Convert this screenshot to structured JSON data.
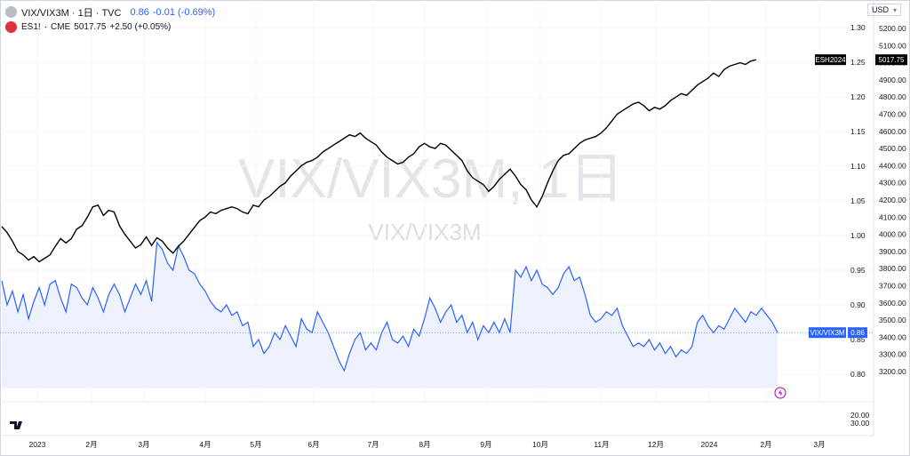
{
  "legend": {
    "main": {
      "title": "VIX/VIX3M · 1日 · TVC",
      "value": "0.86",
      "change": "-0.01 (-0.69%)"
    },
    "compare": {
      "symbol": "ES1!",
      "exchange": "CME",
      "value": "5017.75",
      "change": "+2.50 (+0.05%)"
    }
  },
  "currency": "USD",
  "watermark": {
    "line1": "VIX/VIX3M, 1日",
    "line2": "VIX/VIX3M"
  },
  "colors": {
    "ratio_line": "#2962ff",
    "es_line": "#000000",
    "ratio_fill": "#eef2ff"
  },
  "chart_data": {
    "type": "line",
    "timeframe": "1日",
    "x_ticks": [
      "2023",
      "2月",
      "3月",
      "4月",
      "5月",
      "6月",
      "7月",
      "8月",
      "9月",
      "10月",
      "11月",
      "12月",
      "2024",
      "2月",
      "3月"
    ],
    "right_axis_ticks": [
      "1.30",
      "1.25",
      "1.20",
      "1.15",
      "1.10",
      "1.05",
      "1.00",
      "0.95",
      "0.90",
      "0.85",
      "0.80"
    ],
    "left_scale_ticks": [
      "5200.00",
      "5100.00",
      "5000.00",
      "4900.00",
      "4800.00",
      "4700.00",
      "4600.00",
      "4500.00",
      "4400.00",
      "4300.00",
      "4200.00",
      "4100.00",
      "4000.00",
      "3900.00",
      "3800.00",
      "3700.00",
      "3600.00",
      "3500.00",
      "3400.00",
      "3300.00",
      "3200.00"
    ],
    "volume_ticks": [
      "20.00",
      "30.00"
    ],
    "ratio_range": [
      0.77,
      1.31
    ],
    "es_range": [
      3200,
      5250
    ],
    "series": [
      {
        "name": "VIX/VIX3M",
        "last_value_label": "0.86",
        "points": [
          [
            0,
            0.935
          ],
          [
            3,
            0.9
          ],
          [
            6,
            0.92
          ],
          [
            9,
            0.89
          ],
          [
            12,
            0.915
          ],
          [
            15,
            0.88
          ],
          [
            18,
            0.905
          ],
          [
            21,
            0.925
          ],
          [
            24,
            0.9
          ],
          [
            27,
            0.93
          ],
          [
            30,
            0.935
          ],
          [
            33,
            0.91
          ],
          [
            36,
            0.89
          ],
          [
            39,
            0.93
          ],
          [
            42,
            0.925
          ],
          [
            45,
            0.91
          ],
          [
            48,
            0.9
          ],
          [
            51,
            0.925
          ],
          [
            54,
            0.91
          ],
          [
            57,
            0.89
          ],
          [
            60,
            0.915
          ],
          [
            63,
            0.93
          ],
          [
            66,
            0.915
          ],
          [
            69,
            0.89
          ],
          [
            72,
            0.91
          ],
          [
            75,
            0.93
          ],
          [
            78,
            0.915
          ],
          [
            81,
            0.935
          ],
          [
            84,
            0.905
          ],
          [
            87,
            0.99
          ],
          [
            90,
            0.98
          ],
          [
            93,
            0.96
          ],
          [
            96,
            0.95
          ],
          [
            99,
            0.985
          ],
          [
            102,
            0.97
          ],
          [
            105,
            0.95
          ],
          [
            108,
            0.945
          ],
          [
            111,
            0.93
          ],
          [
            114,
            0.92
          ],
          [
            117,
            0.905
          ],
          [
            120,
            0.895
          ],
          [
            123,
            0.89
          ],
          [
            126,
            0.9
          ],
          [
            129,
            0.885
          ],
          [
            132,
            0.89
          ],
          [
            135,
            0.87
          ],
          [
            138,
            0.875
          ],
          [
            141,
            0.84
          ],
          [
            144,
            0.85
          ],
          [
            147,
            0.83
          ],
          [
            150,
            0.84
          ],
          [
            153,
            0.86
          ],
          [
            156,
            0.85
          ],
          [
            159,
            0.87
          ],
          [
            162,
            0.855
          ],
          [
            165,
            0.84
          ],
          [
            168,
            0.88
          ],
          [
            171,
            0.865
          ],
          [
            174,
            0.86
          ],
          [
            177,
            0.89
          ],
          [
            180,
            0.875
          ],
          [
            183,
            0.86
          ],
          [
            186,
            0.84
          ],
          [
            189,
            0.82
          ],
          [
            192,
            0.805
          ],
          [
            195,
            0.83
          ],
          [
            198,
            0.85
          ],
          [
            201,
            0.86
          ],
          [
            204,
            0.835
          ],
          [
            207,
            0.845
          ],
          [
            210,
            0.835
          ],
          [
            213,
            0.86
          ],
          [
            216,
            0.875
          ],
          [
            219,
            0.85
          ],
          [
            222,
            0.845
          ],
          [
            225,
            0.855
          ],
          [
            228,
            0.84
          ],
          [
            231,
            0.865
          ],
          [
            234,
            0.855
          ],
          [
            237,
            0.88
          ],
          [
            240,
            0.91
          ],
          [
            243,
            0.895
          ],
          [
            246,
            0.875
          ],
          [
            249,
            0.89
          ],
          [
            252,
            0.9
          ],
          [
            255,
            0.875
          ],
          [
            258,
            0.885
          ],
          [
            261,
            0.86
          ],
          [
            264,
            0.875
          ],
          [
            267,
            0.85
          ],
          [
            270,
            0.87
          ],
          [
            273,
            0.86
          ],
          [
            276,
            0.875
          ],
          [
            279,
            0.86
          ],
          [
            282,
            0.88
          ],
          [
            285,
            0.86
          ],
          [
            288,
            0.95
          ],
          [
            291,
            0.94
          ],
          [
            294,
            0.955
          ],
          [
            297,
            0.935
          ],
          [
            300,
            0.95
          ],
          [
            303,
            0.93
          ],
          [
            306,
            0.925
          ],
          [
            309,
            0.915
          ],
          [
            312,
            0.925
          ],
          [
            315,
            0.945
          ],
          [
            318,
            0.955
          ],
          [
            321,
            0.935
          ],
          [
            324,
            0.94
          ],
          [
            327,
            0.915
          ],
          [
            330,
            0.885
          ],
          [
            333,
            0.875
          ],
          [
            336,
            0.88
          ],
          [
            339,
            0.89
          ],
          [
            342,
            0.885
          ],
          [
            345,
            0.895
          ],
          [
            348,
            0.87
          ],
          [
            351,
            0.855
          ],
          [
            354,
            0.84
          ],
          [
            357,
            0.845
          ],
          [
            360,
            0.84
          ],
          [
            363,
            0.85
          ],
          [
            366,
            0.835
          ],
          [
            369,
            0.845
          ],
          [
            372,
            0.83
          ],
          [
            375,
            0.84
          ],
          [
            378,
            0.825
          ],
          [
            381,
            0.835
          ],
          [
            384,
            0.83
          ],
          [
            387,
            0.84
          ],
          [
            390,
            0.875
          ],
          [
            393,
            0.885
          ],
          [
            396,
            0.87
          ],
          [
            399,
            0.86
          ],
          [
            402,
            0.87
          ],
          [
            405,
            0.865
          ],
          [
            408,
            0.88
          ],
          [
            411,
            0.895
          ],
          [
            414,
            0.885
          ],
          [
            417,
            0.875
          ],
          [
            420,
            0.89
          ],
          [
            423,
            0.885
          ],
          [
            426,
            0.895
          ],
          [
            429,
            0.885
          ],
          [
            432,
            0.875
          ],
          [
            435,
            0.86
          ]
        ]
      },
      {
        "name": "ES1!",
        "last_value_label": "5017.75",
        "price_label": "ESH2024",
        "points": [
          [
            0,
            4045
          ],
          [
            3,
            4010
          ],
          [
            6,
            3960
          ],
          [
            9,
            3900
          ],
          [
            12,
            3880
          ],
          [
            15,
            3850
          ],
          [
            18,
            3870
          ],
          [
            21,
            3840
          ],
          [
            24,
            3860
          ],
          [
            27,
            3880
          ],
          [
            30,
            3930
          ],
          [
            33,
            3975
          ],
          [
            36,
            3950
          ],
          [
            39,
            3975
          ],
          [
            42,
            4030
          ],
          [
            45,
            4050
          ],
          [
            48,
            4100
          ],
          [
            51,
            4160
          ],
          [
            54,
            4170
          ],
          [
            57,
            4110
          ],
          [
            60,
            4140
          ],
          [
            63,
            4130
          ],
          [
            66,
            4050
          ],
          [
            69,
            4000
          ],
          [
            72,
            3960
          ],
          [
            75,
            3920
          ],
          [
            78,
            3940
          ],
          [
            81,
            3985
          ],
          [
            84,
            3935
          ],
          [
            87,
            3980
          ],
          [
            90,
            3960
          ],
          [
            93,
            3920
          ],
          [
            96,
            3890
          ],
          [
            99,
            3930
          ],
          [
            102,
            3960
          ],
          [
            105,
            4000
          ],
          [
            108,
            4040
          ],
          [
            111,
            4080
          ],
          [
            114,
            4100
          ],
          [
            117,
            4130
          ],
          [
            120,
            4120
          ],
          [
            123,
            4140
          ],
          [
            126,
            4150
          ],
          [
            129,
            4160
          ],
          [
            132,
            4150
          ],
          [
            135,
            4130
          ],
          [
            138,
            4120
          ],
          [
            141,
            4170
          ],
          [
            144,
            4160
          ],
          [
            147,
            4200
          ],
          [
            150,
            4220
          ],
          [
            153,
            4250
          ],
          [
            156,
            4280
          ],
          [
            159,
            4300
          ],
          [
            162,
            4340
          ],
          [
            165,
            4370
          ],
          [
            168,
            4400
          ],
          [
            171,
            4420
          ],
          [
            174,
            4430
          ],
          [
            177,
            4450
          ],
          [
            180,
            4480
          ],
          [
            183,
            4500
          ],
          [
            186,
            4520
          ],
          [
            189,
            4540
          ],
          [
            192,
            4560
          ],
          [
            195,
            4580
          ],
          [
            198,
            4570
          ],
          [
            201,
            4590
          ],
          [
            204,
            4560
          ],
          [
            207,
            4540
          ],
          [
            210,
            4520
          ],
          [
            213,
            4480
          ],
          [
            216,
            4450
          ],
          [
            219,
            4430
          ],
          [
            222,
            4410
          ],
          [
            225,
            4420
          ],
          [
            228,
            4450
          ],
          [
            231,
            4470
          ],
          [
            234,
            4510
          ],
          [
            237,
            4530
          ],
          [
            240,
            4510
          ],
          [
            243,
            4500
          ],
          [
            246,
            4530
          ],
          [
            249,
            4520
          ],
          [
            252,
            4490
          ],
          [
            255,
            4460
          ],
          [
            258,
            4430
          ],
          [
            261,
            4370
          ],
          [
            264,
            4330
          ],
          [
            267,
            4310
          ],
          [
            270,
            4290
          ],
          [
            273,
            4250
          ],
          [
            276,
            4280
          ],
          [
            279,
            4320
          ],
          [
            282,
            4350
          ],
          [
            285,
            4380
          ],
          [
            288,
            4340
          ],
          [
            291,
            4290
          ],
          [
            294,
            4260
          ],
          [
            297,
            4200
          ],
          [
            300,
            4160
          ],
          [
            303,
            4220
          ],
          [
            306,
            4300
          ],
          [
            309,
            4370
          ],
          [
            312,
            4430
          ],
          [
            315,
            4460
          ],
          [
            318,
            4470
          ],
          [
            321,
            4500
          ],
          [
            324,
            4530
          ],
          [
            327,
            4550
          ],
          [
            330,
            4560
          ],
          [
            333,
            4570
          ],
          [
            336,
            4590
          ],
          [
            339,
            4620
          ],
          [
            342,
            4660
          ],
          [
            345,
            4700
          ],
          [
            348,
            4720
          ],
          [
            351,
            4740
          ],
          [
            354,
            4760
          ],
          [
            357,
            4770
          ],
          [
            360,
            4750
          ],
          [
            363,
            4720
          ],
          [
            366,
            4740
          ],
          [
            369,
            4730
          ],
          [
            372,
            4750
          ],
          [
            375,
            4780
          ],
          [
            378,
            4800
          ],
          [
            381,
            4820
          ],
          [
            384,
            4810
          ],
          [
            387,
            4840
          ],
          [
            390,
            4870
          ],
          [
            393,
            4890
          ],
          [
            396,
            4910
          ],
          [
            399,
            4940
          ],
          [
            402,
            4920
          ],
          [
            405,
            4960
          ],
          [
            408,
            4980
          ],
          [
            411,
            4990
          ],
          [
            414,
            5000
          ],
          [
            417,
            4990
          ],
          [
            420,
            5010
          ],
          [
            423,
            5017.75
          ]
        ]
      }
    ]
  }
}
